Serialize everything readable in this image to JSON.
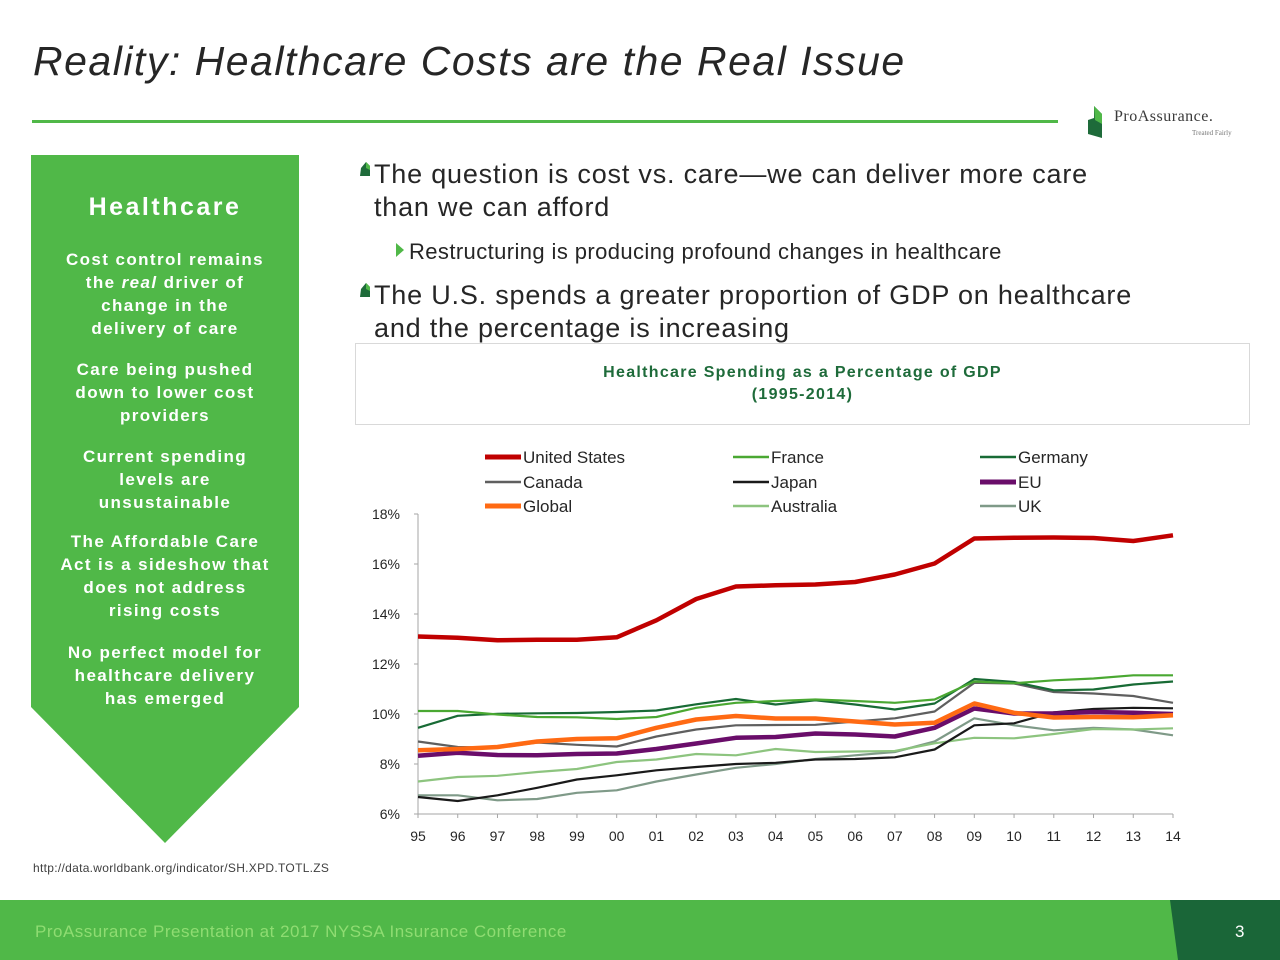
{
  "header": {
    "title": "Reality: Healthcare Costs are the Real Issue",
    "logo_name": "ProAssurance.",
    "logo_tagline": "Treated Fairly"
  },
  "sidebar": {
    "heading": "Healthcare",
    "points": [
      [
        "Cost control remains",
        "the real driver of",
        "change in the",
        "delivery of care"
      ],
      [
        "Care being pushed",
        "down to lower cost",
        "providers"
      ],
      [
        "Current spending",
        "levels are",
        "unsustainable"
      ],
      [
        "The Affordable Care",
        "Act is a sideshow that",
        "does not address",
        "rising costs"
      ],
      [
        "No perfect model for",
        "healthcare delivery",
        "has emerged"
      ]
    ]
  },
  "bullets": [
    {
      "level": 1,
      "lines": [
        "The question is cost vs. care—we can deliver more care",
        "than we can afford"
      ]
    },
    {
      "level": 2,
      "lines": [
        "Restructuring is producing profound changes in healthcare"
      ]
    },
    {
      "level": 1,
      "lines": [
        "The U.S. spends a greater proportion of GDP on healthcare",
        "and the percentage is increasing"
      ]
    }
  ],
  "colors": {
    "brand_green": "#50b848",
    "dark_green": "#1e6b3a"
  },
  "chart_data": {
    "type": "line",
    "title": "Healthcare Spending as a Percentage of GDP",
    "subtitle": "(1995-2014)",
    "xlabel": "",
    "ylabel": "",
    "x": [
      "95",
      "96",
      "97",
      "98",
      "99",
      "00",
      "01",
      "02",
      "03",
      "04",
      "05",
      "06",
      "07",
      "08",
      "09",
      "10",
      "11",
      "12",
      "13",
      "14"
    ],
    "ylim": [
      6,
      18
    ],
    "yticks": [
      "6%",
      "8%",
      "10%",
      "12%",
      "14%",
      "16%",
      "18%"
    ],
    "yticks_values": [
      6,
      8,
      10,
      12,
      14,
      16,
      18
    ],
    "grid": false,
    "legend_position": "top",
    "series": [
      {
        "name": "United States",
        "color": "#c00000",
        "width": "thick",
        "values": [
          13.1,
          13.05,
          12.95,
          12.97,
          12.97,
          13.07,
          13.75,
          14.6,
          15.1,
          15.15,
          15.18,
          15.28,
          15.58,
          16.02,
          17.02,
          17.05,
          17.06,
          17.04,
          16.92,
          17.15
        ]
      },
      {
        "name": "France",
        "color": "#4aa832",
        "width": "normal",
        "values": [
          10.12,
          10.12,
          9.98,
          9.88,
          9.87,
          9.8,
          9.88,
          10.25,
          10.45,
          10.52,
          10.58,
          10.52,
          10.45,
          10.58,
          11.3,
          11.23,
          11.35,
          11.42,
          11.55,
          11.55
        ]
      },
      {
        "name": "Germany",
        "color": "#186b35",
        "width": "normal",
        "values": [
          9.45,
          9.93,
          10.01,
          10.03,
          10.04,
          10.08,
          10.14,
          10.39,
          10.6,
          10.38,
          10.55,
          10.38,
          10.18,
          10.42,
          11.4,
          11.28,
          10.95,
          10.98,
          11.18,
          11.3
        ]
      },
      {
        "name": "Canada",
        "color": "#5f5f5f",
        "width": "normal",
        "values": [
          8.9,
          8.68,
          8.65,
          8.86,
          8.77,
          8.7,
          9.1,
          9.38,
          9.55,
          9.56,
          9.57,
          9.7,
          9.83,
          10.1,
          11.25,
          11.22,
          10.88,
          10.82,
          10.72,
          10.45
        ]
      },
      {
        "name": "Japan",
        "color": "#1a1a1a",
        "width": "normal",
        "values": [
          6.68,
          6.52,
          6.75,
          7.05,
          7.38,
          7.55,
          7.75,
          7.88,
          8.0,
          8.05,
          8.18,
          8.2,
          8.27,
          8.58,
          9.55,
          9.63,
          10.07,
          10.2,
          10.25,
          10.23
        ]
      },
      {
        "name": "EU",
        "color": "#6a0d6a",
        "width": "thick",
        "values": [
          8.33,
          8.45,
          8.36,
          8.35,
          8.4,
          8.42,
          8.6,
          8.82,
          9.05,
          9.08,
          9.22,
          9.18,
          9.1,
          9.45,
          10.22,
          10.02,
          10.02,
          10.08,
          10.05,
          10.0
        ]
      },
      {
        "name": "Global",
        "color": "#ff6a13",
        "width": "thick",
        "values": [
          8.55,
          8.6,
          8.68,
          8.9,
          9.0,
          9.03,
          9.45,
          9.78,
          9.92,
          9.82,
          9.82,
          9.7,
          9.58,
          9.65,
          10.42,
          10.05,
          9.86,
          9.88,
          9.87,
          9.95
        ]
      },
      {
        "name": "Australia",
        "color": "#8dc47f",
        "width": "normal",
        "values": [
          7.3,
          7.48,
          7.53,
          7.68,
          7.8,
          8.08,
          8.18,
          8.4,
          8.35,
          8.6,
          8.48,
          8.5,
          8.52,
          8.83,
          9.05,
          9.03,
          9.2,
          9.4,
          9.38,
          9.43
        ]
      },
      {
        "name": "UK",
        "color": "#7f9a88",
        "width": "normal",
        "values": [
          6.75,
          6.75,
          6.55,
          6.6,
          6.85,
          6.95,
          7.3,
          7.58,
          7.85,
          8.0,
          8.2,
          8.35,
          8.48,
          8.9,
          9.83,
          9.55,
          9.35,
          9.45,
          9.38,
          9.15
        ]
      }
    ]
  },
  "source": "http://data.worldbank.org/indicator/SH.XPD.TOTL.ZS",
  "footer": {
    "text": "ProAssurance Presentation at 2017 NYSSA Insurance Conference",
    "page_number": "3"
  }
}
